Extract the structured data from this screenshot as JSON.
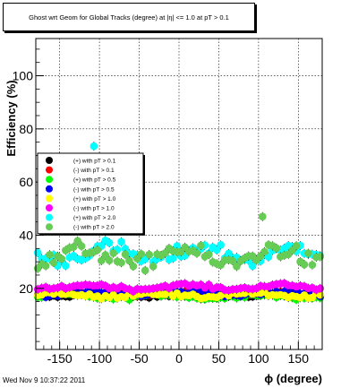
{
  "header": {
    "title": "Ghost wrt Geom for Global Tracks (degree) at |η| <= 1.0 at pT > 0.1"
  },
  "footer": {
    "timestamp": "Wed Nov  9 10:37:22 2011"
  },
  "chart_data": {
    "type": "scatter",
    "title": "Ghost wrt Geom for Global Tracks (degree) at |η| <= 1.0 at pT > 0.1",
    "xlabel": "ϕ (degree)",
    "ylabel": "Efficiency (%)",
    "xlim": [
      -180,
      180
    ],
    "ylim": [
      -3,
      114
    ],
    "xticks": [
      -150,
      -100,
      -50,
      0,
      50,
      100,
      150
    ],
    "yticks": [
      20,
      40,
      60,
      80,
      100
    ],
    "grid": true,
    "legend_position": "left-middle",
    "n_points_per_series": 72,
    "series": [
      {
        "name": "(+) with pT > 0.1",
        "color": "#000000",
        "mean": 17.5,
        "amplitude": 0.6,
        "phase": 0.3,
        "spread": 0.6
      },
      {
        "name": "(-) with pT > 0.1",
        "color": "#ff0000",
        "mean": 17.8,
        "amplitude": 0.5,
        "phase": 1.9,
        "spread": 0.6
      },
      {
        "name": "(+) with pT > 0.5",
        "color": "#00ff00",
        "mean": 17.0,
        "amplitude": 0.7,
        "phase": 2.7,
        "spread": 0.7
      },
      {
        "name": "(-) with pT > 0.5",
        "color": "#0000ff",
        "mean": 18.0,
        "amplitude": 0.5,
        "phase": 0.9,
        "spread": 0.6
      },
      {
        "name": "(+) with pT > 1.0",
        "color": "#ffff00",
        "mean": 17.5,
        "amplitude": 0.8,
        "phase": 3.4,
        "spread": 0.8
      },
      {
        "name": "(-) with pT > 1.0",
        "color": "#ff00ff",
        "mean": 20.5,
        "amplitude": 0.8,
        "phase": 1.2,
        "spread": 0.7
      },
      {
        "name": "(+) with pT > 2.0",
        "color": "#00ffff",
        "mean": 33.0,
        "amplitude": 2.5,
        "phase": 0.0,
        "spread": 2.8,
        "outliers": [
          {
            "x": -107,
            "y": 73.5
          }
        ]
      },
      {
        "name": "(-) with pT > 2.0",
        "color": "#66cc55",
        "mean": 32.0,
        "amplitude": 3.0,
        "phase": 1.5,
        "spread": 3.2,
        "outliers": [
          {
            "x": 105,
            "y": 47
          }
        ]
      }
    ]
  }
}
